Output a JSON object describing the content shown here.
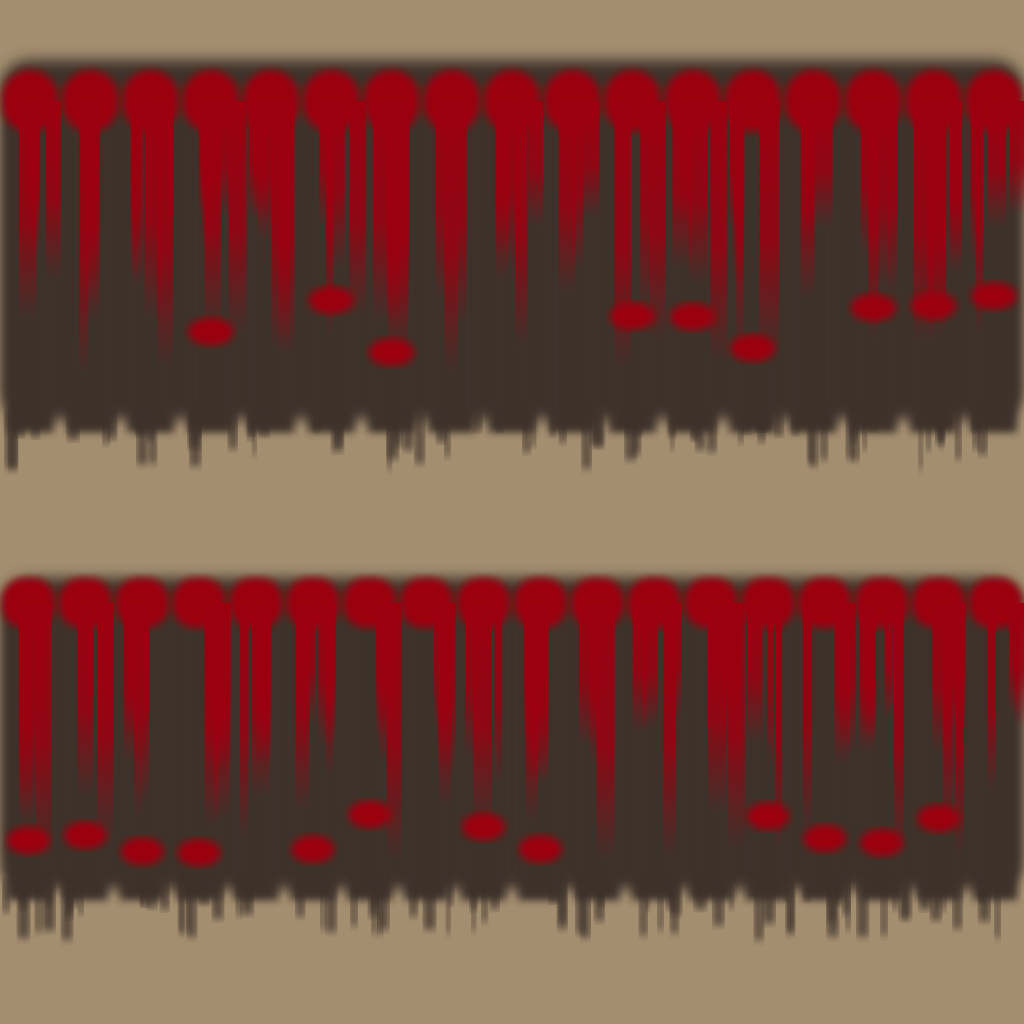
{
  "texture": {
    "kind": "sprite-texture-atlas",
    "background_color": "#a48e70",
    "dark_color": "#3c3329",
    "accent_color": "#9c0010",
    "rows": [
      {
        "name": "upper-strip",
        "column_count": 17
      },
      {
        "name": "lower-strip",
        "column_count": 18
      }
    ]
  }
}
